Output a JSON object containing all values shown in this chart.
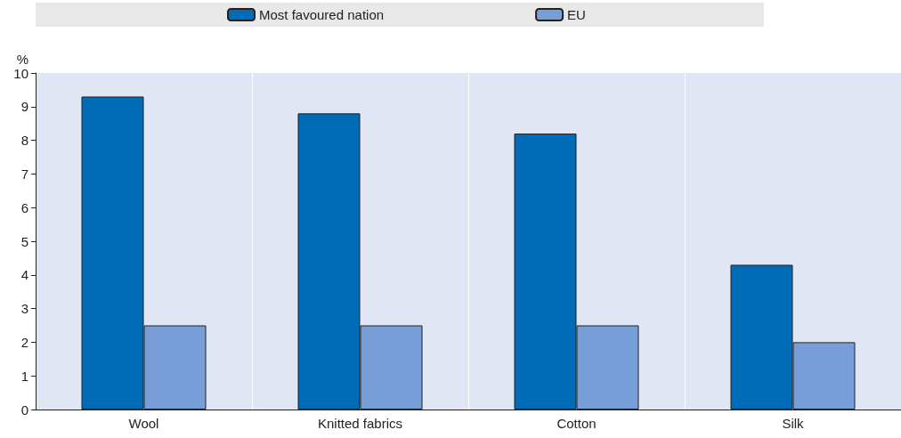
{
  "chart_data": {
    "type": "bar",
    "ylabel": "%",
    "categories": [
      "Wool",
      "Knitted fabrics",
      "Cotton",
      "Silk"
    ],
    "series": [
      {
        "name": "Most favoured nation",
        "color": "#006bb6",
        "values": [
          9.3,
          8.8,
          8.2,
          4.3
        ]
      },
      {
        "name": "EU",
        "color": "#779ed6",
        "values": [
          2.5,
          2.5,
          2.5,
          2.0
        ]
      }
    ],
    "ylim": [
      0,
      10
    ],
    "yticks": [
      0,
      1,
      2,
      3,
      4,
      5,
      6,
      7,
      8,
      9,
      10
    ],
    "grid": "x",
    "legend": "top"
  }
}
